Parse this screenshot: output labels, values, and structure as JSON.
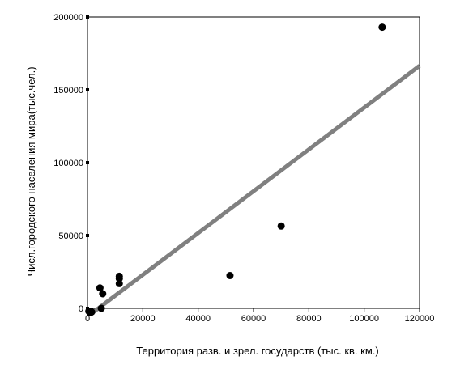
{
  "chart_data": {
    "type": "scatter",
    "title": "",
    "xlabel": "Территория разв. и зрел. государств (тыс. кв. км.)",
    "ylabel": "Числ.городского населения мира(тыс.чел.)",
    "xlim": [
      0,
      120000
    ],
    "ylim": [
      0,
      200000
    ],
    "xticks": [
      0,
      20000,
      40000,
      60000,
      80000,
      100000,
      120000
    ],
    "yticks": [
      0,
      50000,
      100000,
      150000,
      200000
    ],
    "xtick_labels": [
      "0",
      "20000",
      "40000",
      "60000",
      "80000",
      "100000",
      "120000"
    ],
    "ytick_labels": [
      "0",
      "50000",
      "100000",
      "150000",
      "200000"
    ],
    "grid": false,
    "legend": "none",
    "colors": {
      "points": "#000000",
      "fit_line": "#808080"
    },
    "points": [
      {
        "x": 500,
        "y": -2000
      },
      {
        "x": 1000,
        "y": -3000
      },
      {
        "x": 1500,
        "y": -2500
      },
      {
        "x": 4500,
        "y": 14000
      },
      {
        "x": 5000,
        "y": 0
      },
      {
        "x": 5500,
        "y": 10000
      },
      {
        "x": 11500,
        "y": 17000
      },
      {
        "x": 11500,
        "y": 20500
      },
      {
        "x": 11500,
        "y": 22000
      },
      {
        "x": 51500,
        "y": 22500
      },
      {
        "x": 70000,
        "y": 56500
      },
      {
        "x": 106500,
        "y": 193000
      }
    ],
    "fit_line": {
      "x": [
        1500,
        120000
      ],
      "y": [
        -3500,
        166500
      ]
    }
  }
}
